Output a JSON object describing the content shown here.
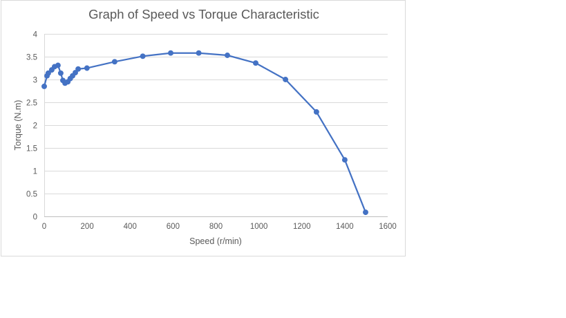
{
  "chart_data": {
    "type": "scatter",
    "subtype": "scatter-with-lines-and-markers",
    "title": "Graph of Speed vs Torque Characteristic",
    "xlabel": "Speed (r/min)",
    "ylabel": "Torque (N.m)",
    "xlim": [
      0,
      1600
    ],
    "ylim": [
      0,
      4
    ],
    "xticks": [
      0,
      200,
      400,
      600,
      800,
      1000,
      1200,
      1400,
      1600
    ],
    "yticks": [
      0,
      0.5,
      1,
      1.5,
      2,
      2.5,
      3,
      3.5,
      4
    ],
    "ytick_labels": [
      "0",
      "0.5",
      "1",
      "1.5",
      "2",
      "2.5",
      "3",
      "3.5",
      "4"
    ],
    "grid": {
      "horizontal": true,
      "vertical": false
    },
    "legend": null,
    "series": [
      {
        "name": "Torque",
        "color": "#4472c4",
        "x": [
          0,
          13,
          19,
          35,
          48,
          64,
          77,
          87,
          97,
          110,
          121,
          132,
          145,
          158,
          199,
          328,
          459,
          589,
          720,
          853,
          985,
          1124,
          1268,
          1400,
          1497
        ],
        "y": [
          2.85,
          3.08,
          3.14,
          3.21,
          3.28,
          3.31,
          3.14,
          2.98,
          2.92,
          2.95,
          3.02,
          3.08,
          3.15,
          3.23,
          3.25,
          3.39,
          3.51,
          3.58,
          3.58,
          3.53,
          3.36,
          3.0,
          2.29,
          1.24,
          0.09
        ]
      }
    ]
  },
  "colors": {
    "series": "#4472c4",
    "gridline": "#d9d9d9",
    "axis": "#bfbfbf",
    "text": "#595959",
    "frame": "#d9d9d9"
  }
}
